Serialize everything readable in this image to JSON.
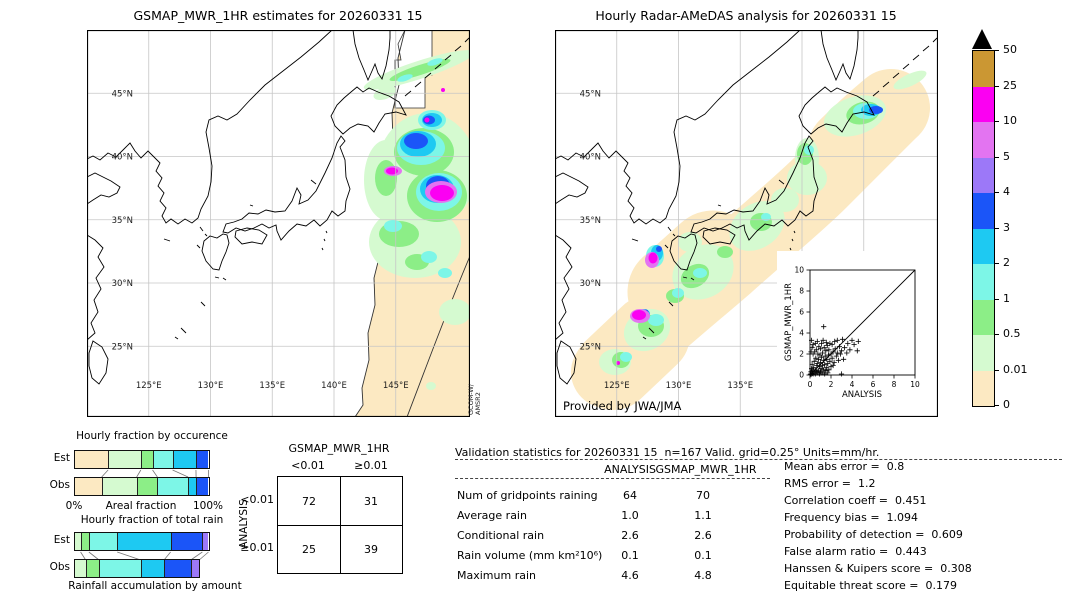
{
  "left_map": {
    "title": "GSMAP_MWR_1HR estimates for 20260331 15",
    "lat_labels": [
      "45°N",
      "40°N",
      "35°N",
      "30°N",
      "25°N"
    ],
    "lon_labels": [
      "125°E",
      "130°E",
      "135°E",
      "140°E",
      "145°E"
    ],
    "satellite_lines": [
      "GCOM-W/",
      "AMSR2"
    ]
  },
  "right_map": {
    "title": "Hourly Radar-AMeDAS analysis for 20260331 15",
    "lat_labels": [
      "45°N",
      "40°N",
      "35°N",
      "30°N",
      "25°N"
    ],
    "lon_labels": [
      "125°E",
      "130°E",
      "135°E"
    ],
    "credit": "Provided by JWA/JMA"
  },
  "stats_table": {
    "title": "Validation statistics for 20260331 15  n=167 Valid. grid=0.25° Units=mm/hr.",
    "col_headers": [
      "ANALYSIS",
      "GSMAP_MWR_1HR"
    ],
    "rows": [
      {
        "label": "Num of gridpoints raining",
        "analysis": "64",
        "gsmap": "70"
      },
      {
        "label": "Average rain",
        "analysis": "1.0",
        "gsmap": "1.1"
      },
      {
        "label": "Conditional rain",
        "analysis": "2.6",
        "gsmap": "2.6"
      },
      {
        "label": "Rain volume (mm km²10⁶)",
        "analysis": "0.1",
        "gsmap": "0.1"
      },
      {
        "label": "Maximum rain",
        "analysis": "4.6",
        "gsmap": "4.8"
      }
    ]
  },
  "stats_list": {
    "items": [
      {
        "label": "Mean abs error =",
        "value": "0.8"
      },
      {
        "label": "RMS error =",
        "value": "1.2"
      },
      {
        "label": "Correlation coeff =",
        "value": "0.451"
      },
      {
        "label": "Frequency bias =",
        "value": "1.094"
      },
      {
        "label": "Probability of detection =",
        "value": "0.609"
      },
      {
        "label": "False alarm ratio =",
        "value": "0.443"
      },
      {
        "label": "Hanssen & Kuipers score =",
        "value": "0.308"
      },
      {
        "label": "Equitable threat score =",
        "value": "0.179"
      }
    ]
  },
  "chart_data": [
    {
      "id": "occurrence_fraction",
      "type": "bar",
      "title": "Hourly fraction by occurence",
      "row_labels": [
        "Est",
        "Obs"
      ],
      "axis": {
        "left": "0%",
        "center": "Areal fraction",
        "right": "100%"
      },
      "colors": [
        "#fce9c2",
        "#d5fad0",
        "#8cee87",
        "#7df6e7",
        "#1ec9f2",
        "#1b55f8"
      ],
      "series": [
        {
          "name": "Est",
          "values": [
            24.8,
            24.5,
            8.8,
            15.0,
            17.5,
            9.4
          ]
        },
        {
          "name": "Obs",
          "values": [
            20.0,
            26.2,
            15.5,
            23.0,
            6.0,
            9.3
          ]
        }
      ]
    },
    {
      "id": "total_rain_fraction",
      "type": "bar",
      "title": "Hourly fraction of total rain",
      "footer": "Rainfall accumulation by amount",
      "row_labels": [
        "Est",
        "Obs"
      ],
      "colors": [
        "#d5fad0",
        "#8cee87",
        "#7df6e7",
        "#1ec9f2",
        "#1b55f8",
        "#9c78f8"
      ],
      "series": [
        {
          "name": "Est",
          "values": [
            4.2,
            6.2,
            21.2,
            40.0,
            23.8,
            4.6
          ]
        },
        {
          "name": "Obs",
          "values": [
            8.0,
            10.0,
            31.2,
            17.5,
            20.0,
            6.3
          ]
        }
      ]
    },
    {
      "id": "contingency_table",
      "type": "table",
      "col_title": "GSMAP_MWR_1HR",
      "row_title": "ANALYSIS",
      "col_labels": [
        "<0.01",
        "≥0.01"
      ],
      "row_labels": [
        "<0.01",
        "≥0.01"
      ],
      "values": [
        [
          "72",
          "31"
        ],
        [
          "25",
          "39"
        ]
      ]
    },
    {
      "id": "inset_scatter",
      "type": "scatter",
      "xlabel": "ANALYSIS",
      "ylabel": "GSMAP_MWR_1HR",
      "xlim": [
        0,
        10
      ],
      "ylim": [
        0,
        10
      ],
      "ticks": [
        "0",
        "2",
        "4",
        "6",
        "8",
        "10"
      ],
      "diagonal": true,
      "points": [
        [
          0.05,
          0.1
        ],
        [
          0.1,
          0.3
        ],
        [
          0.1,
          0.05
        ],
        [
          0.1,
          2.2
        ],
        [
          0.15,
          0.6
        ],
        [
          0.15,
          3.3
        ],
        [
          0.2,
          0.15
        ],
        [
          0.2,
          1.0
        ],
        [
          0.2,
          2.6
        ],
        [
          0.25,
          0.4
        ],
        [
          0.3,
          0.1
        ],
        [
          0.3,
          2.0
        ],
        [
          0.3,
          2.9
        ],
        [
          0.35,
          0.7
        ],
        [
          0.4,
          0.2
        ],
        [
          0.4,
          1.3
        ],
        [
          0.45,
          2.2
        ],
        [
          0.5,
          0.1
        ],
        [
          0.5,
          0.5
        ],
        [
          0.5,
          3.0
        ],
        [
          0.55,
          1.6
        ],
        [
          0.6,
          0.3
        ],
        [
          0.6,
          2.4
        ],
        [
          0.65,
          0.9
        ],
        [
          0.7,
          0.2
        ],
        [
          0.7,
          1.1
        ],
        [
          0.7,
          3.2
        ],
        [
          0.75,
          2.0
        ],
        [
          0.8,
          0.4
        ],
        [
          0.8,
          1.5
        ],
        [
          0.85,
          2.7
        ],
        [
          0.9,
          0.1
        ],
        [
          0.9,
          0.8
        ],
        [
          0.95,
          1.9
        ],
        [
          1.0,
          0.3
        ],
        [
          1.0,
          1.2
        ],
        [
          1.0,
          2.5
        ],
        [
          1.05,
          0.6
        ],
        [
          1.1,
          1.7
        ],
        [
          1.1,
          3.0
        ],
        [
          1.15,
          0.2
        ],
        [
          1.2,
          0.9
        ],
        [
          1.2,
          2.1
        ],
        [
          1.25,
          3.3
        ],
        [
          1.3,
          0.5
        ],
        [
          1.3,
          1.4
        ],
        [
          1.3,
          4.6
        ],
        [
          1.35,
          2.6
        ],
        [
          1.4,
          0.1
        ],
        [
          1.4,
          1.0
        ],
        [
          1.45,
          1.8
        ],
        [
          1.5,
          0.4
        ],
        [
          1.5,
          2.3
        ],
        [
          1.55,
          3.1
        ],
        [
          1.6,
          0.7
        ],
        [
          1.6,
          1.5
        ],
        [
          1.65,
          2.8
        ],
        [
          1.7,
          0.2
        ],
        [
          1.7,
          1.1
        ],
        [
          1.75,
          1.9
        ],
        [
          1.8,
          0.5
        ],
        [
          1.8,
          2.4
        ],
        [
          1.9,
          1.3
        ],
        [
          1.9,
          3.0
        ],
        [
          2.0,
          0.8
        ],
        [
          2.0,
          2.0
        ],
        [
          2.1,
          1.6
        ],
        [
          2.1,
          2.9
        ],
        [
          2.2,
          0.9
        ],
        [
          2.2,
          2.2
        ],
        [
          2.3,
          1.2
        ],
        [
          2.35,
          3.2
        ],
        [
          2.4,
          2.5
        ],
        [
          2.5,
          1.8
        ],
        [
          2.6,
          2.1
        ],
        [
          2.6,
          3.3
        ],
        [
          2.7,
          1.4
        ],
        [
          2.8,
          2.7
        ],
        [
          2.9,
          2.0
        ],
        [
          3.0,
          0.1
        ],
        [
          3.0,
          2.3
        ],
        [
          3.1,
          3.4
        ],
        [
          3.2,
          1.5
        ],
        [
          3.3,
          2.6
        ],
        [
          3.5,
          2.1
        ],
        [
          3.6,
          3.0
        ],
        [
          3.8,
          2.4
        ],
        [
          4.0,
          3.3
        ],
        [
          4.2,
          2.9
        ],
        [
          4.5,
          2.3
        ],
        [
          4.6,
          3.2
        ]
      ]
    },
    {
      "id": "colorbar",
      "type": "scale",
      "labels": [
        "50",
        "25",
        "10",
        "5",
        "4",
        "3",
        "2",
        "1",
        "0.5",
        "0.01",
        "0"
      ],
      "colors_top_to_bottom": [
        "#cb9733",
        "#fb00f2",
        "#e374f1",
        "#9c78f8",
        "#1b55f8",
        "#1ec9f2",
        "#7df6e7",
        "#8cee87",
        "#d5fad0",
        "#fce9c2"
      ],
      "extend_above_color": "#000000"
    }
  ]
}
